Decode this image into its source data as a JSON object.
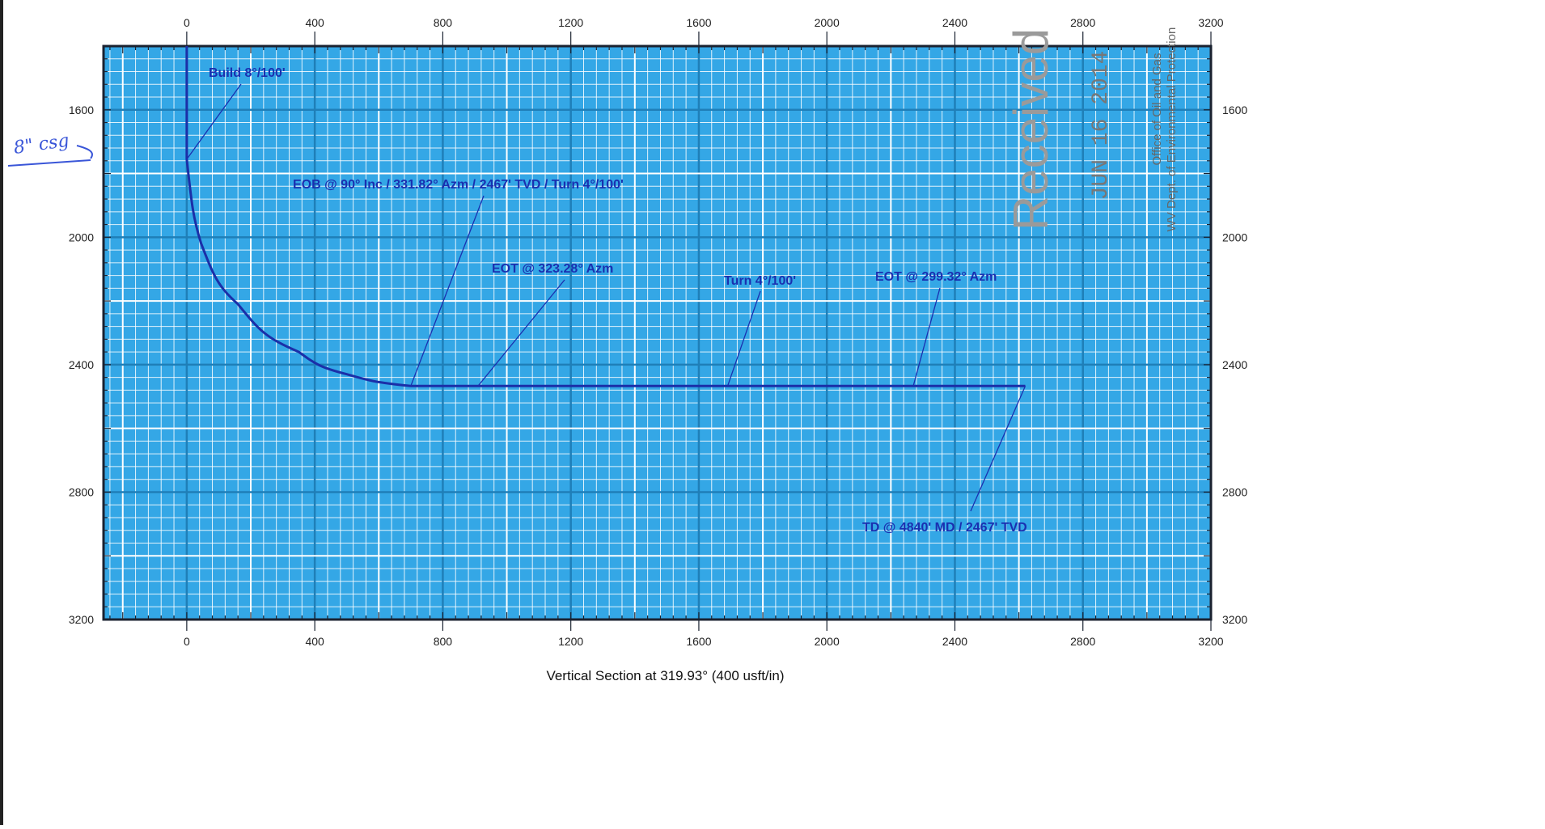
{
  "chart_data": {
    "type": "line",
    "title": "",
    "xlabel": "Vertical Section at 319.93° (400 usft/in)",
    "ylabel": "",
    "xlim": [
      -260,
      3200
    ],
    "ylim": [
      1400,
      3200
    ],
    "y_inverted": true,
    "x_ticks": [
      0,
      400,
      800,
      1200,
      1600,
      2000,
      2400,
      2800,
      3200
    ],
    "y_ticks": [
      1600,
      2000,
      2400,
      2800,
      3200
    ],
    "grid": true,
    "series": [
      {
        "name": "",
        "points": [
          [
            0,
            1400
          ],
          [
            0,
            1755
          ],
          [
            45,
            2020
          ],
          [
            160,
            2210
          ],
          [
            350,
            2360
          ],
          [
            500,
            2430
          ],
          [
            700,
            2467
          ],
          [
            2620,
            2467
          ]
        ]
      }
    ],
    "annotations": [
      {
        "text": "Build 8°/100'",
        "x": 0,
        "y": 1755
      },
      {
        "text": "EOB @ 90° Inc / 331.82° Azm / 2467' TVD / Turn 4°/100'",
        "x": 700,
        "y": 2467
      },
      {
        "text": "EOT @ 323.28° Azm",
        "x": 910,
        "y": 2467
      },
      {
        "text": "Turn 4°/100'",
        "x": 1690,
        "y": 2467
      },
      {
        "text": "EOT @ 299.32° Azm",
        "x": 2270,
        "y": 2467
      },
      {
        "text": "TD @ 4840' MD / 2467' TVD",
        "x": 2620,
        "y": 2467
      }
    ]
  },
  "stamp": {
    "received": "Received",
    "date": "JUN 16 2014",
    "office_line1": "Office of Oil and Gas",
    "office_line2": "WV Dept. of Environmental Protection"
  },
  "handwriting": {
    "note": "8\" csg"
  },
  "colors": {
    "grid_major": "#2f96cf",
    "grid_minor": "#57b6e6",
    "background": "#34a7e6",
    "wellpath": "#1b2fa8",
    "annotation": "#1a2fb0"
  }
}
